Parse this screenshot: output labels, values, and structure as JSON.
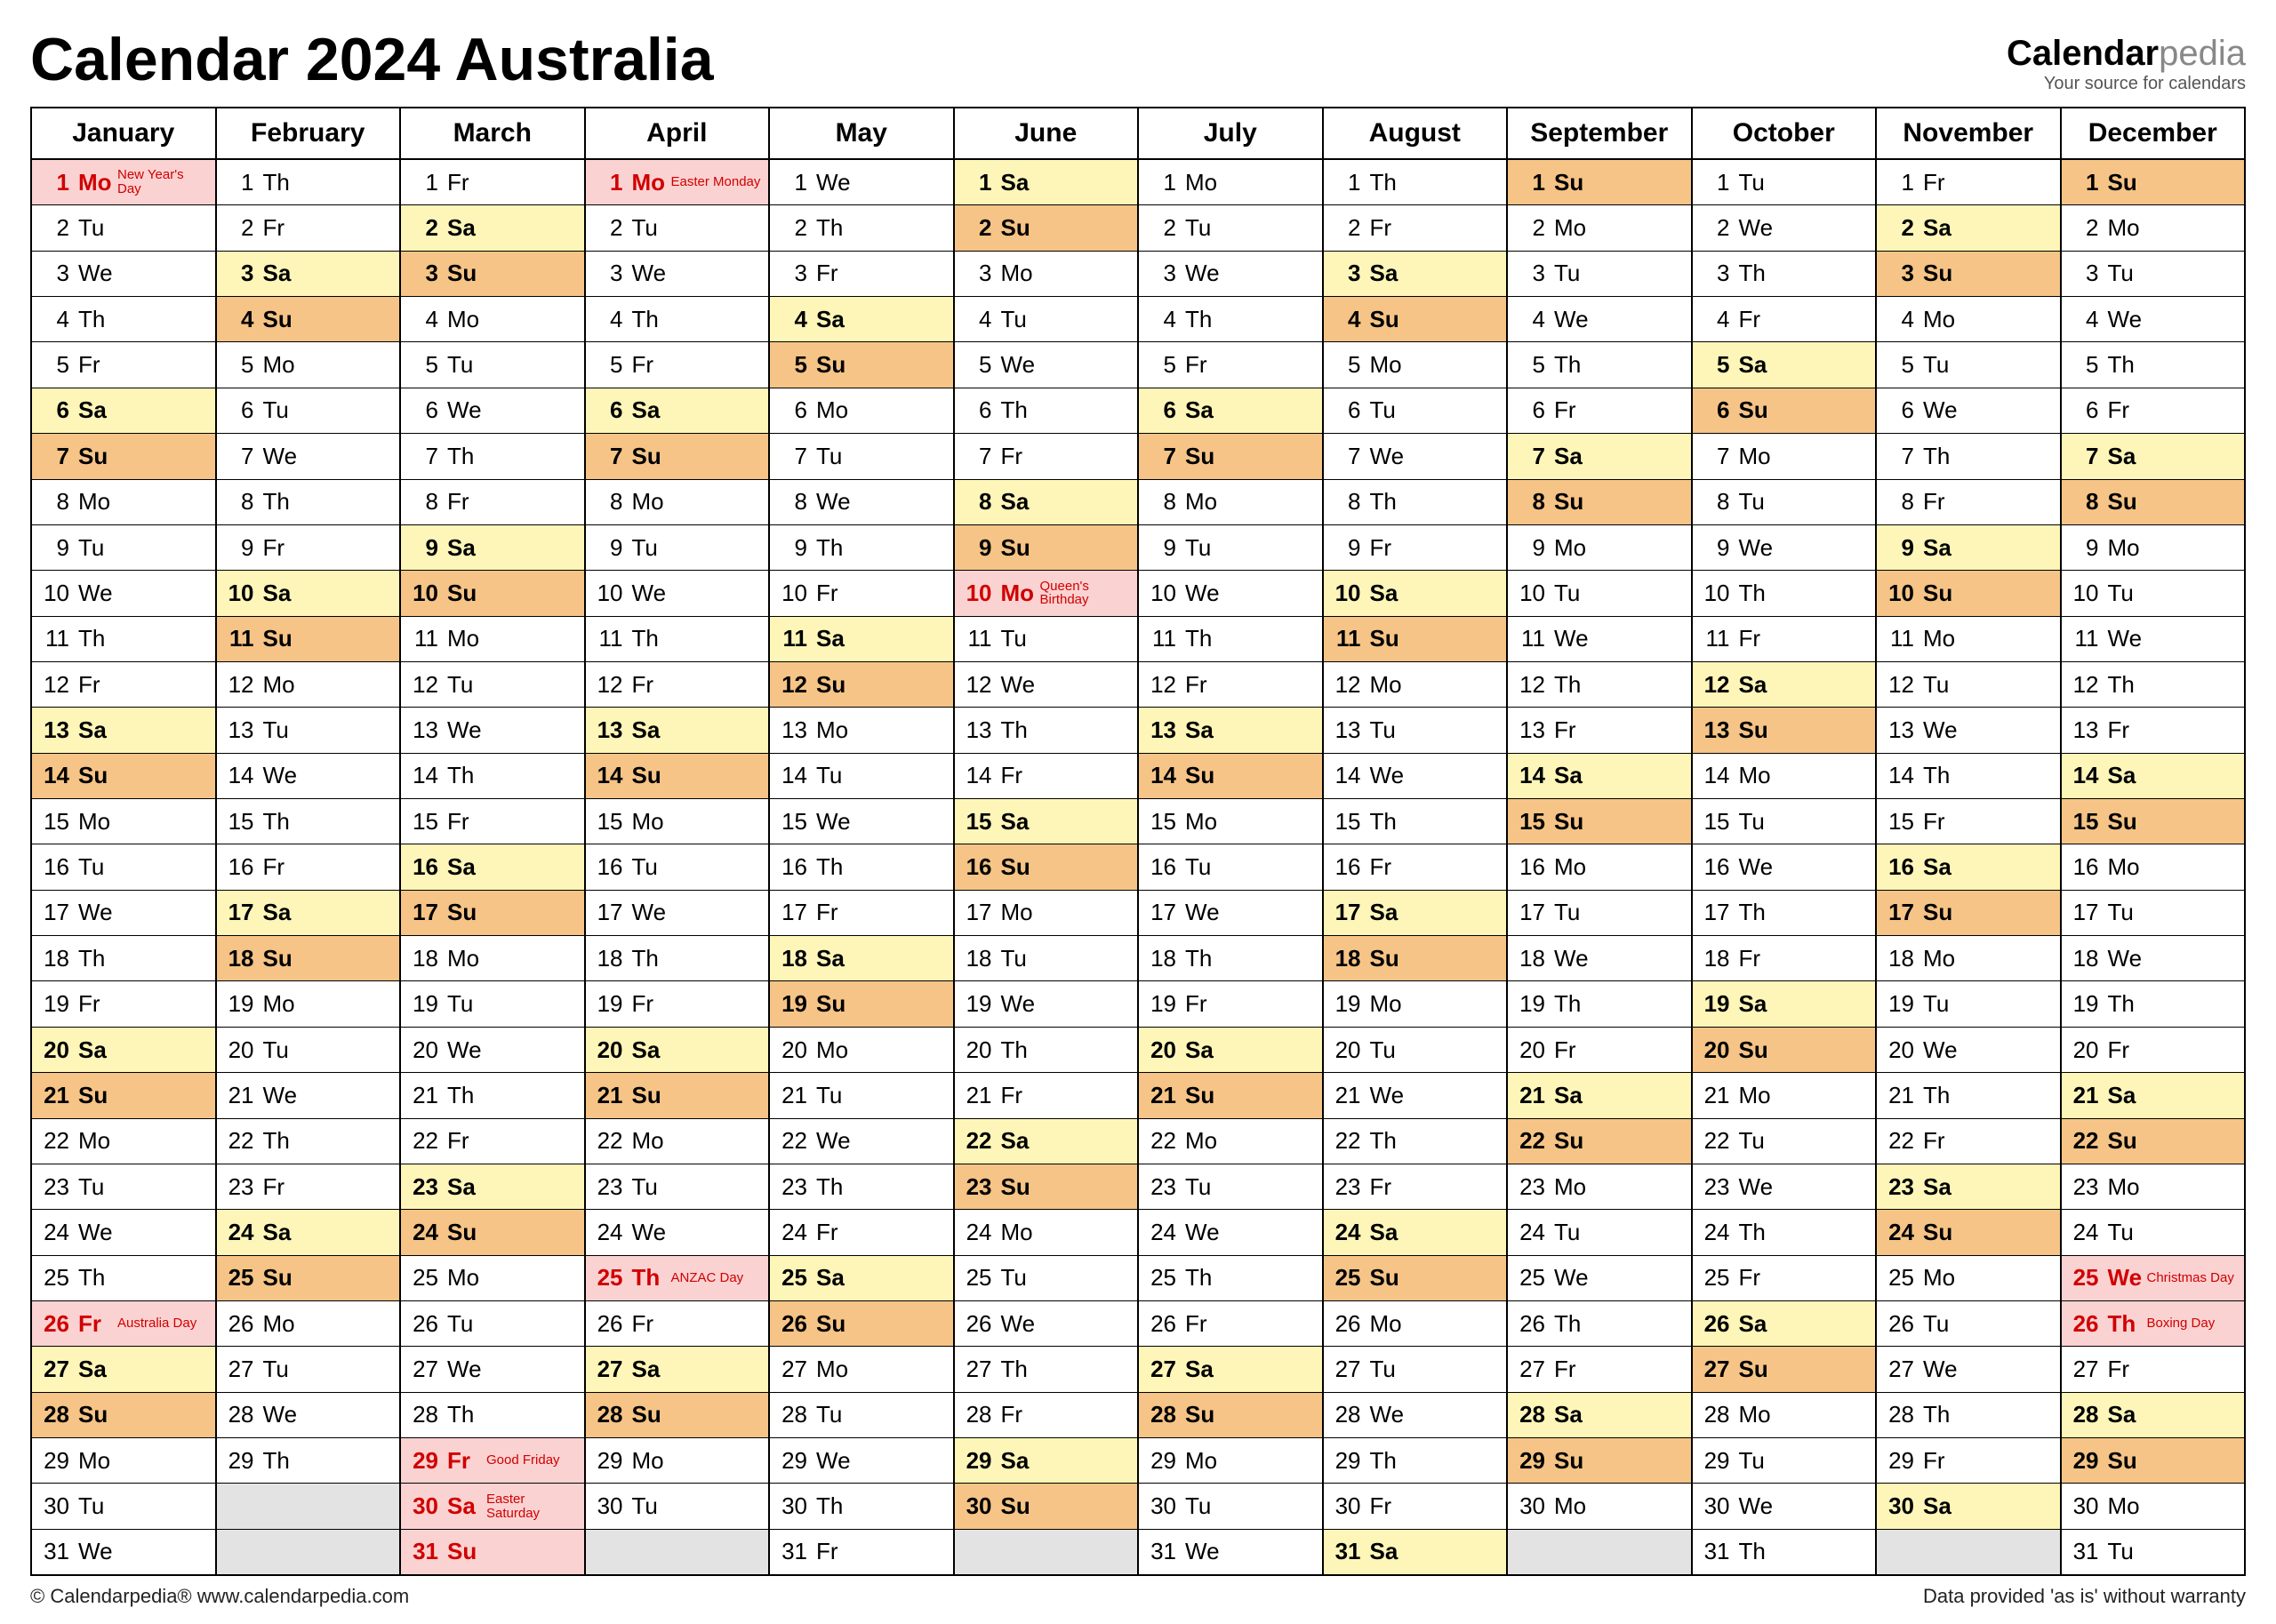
{
  "title": "Calendar 2024 Australia",
  "logo_brand": "Calendar",
  "logo_suffix": "pedia",
  "logo_tagline": "Your source for calendars",
  "footer_left": "© Calendarpedia®   www.calendarpedia.com",
  "footer_right": "Data provided 'as is' without warranty",
  "year": 2024,
  "first_weekday_of_month": [
    0,
    3,
    4,
    0,
    2,
    5,
    0,
    3,
    6,
    1,
    4,
    6
  ],
  "days_in_month": [
    31,
    29,
    31,
    30,
    31,
    30,
    31,
    31,
    30,
    31,
    30,
    31
  ],
  "weekday_abbr": [
    "Mo",
    "Tu",
    "We",
    "Th",
    "Fr",
    "Sa",
    "Su"
  ],
  "months": [
    "January",
    "February",
    "March",
    "April",
    "May",
    "June",
    "July",
    "August",
    "September",
    "October",
    "November",
    "December"
  ],
  "holidays": {
    "0": {
      "1": "New Year's Day",
      "26": "Australia Day"
    },
    "2": {
      "29": "Good Friday",
      "30": "Easter Saturday",
      "31": ""
    },
    "3": {
      "1": "Easter Monday",
      "25": "ANZAC Day"
    },
    "5": {
      "10": "Queen's Birthday"
    },
    "11": {
      "25": "Christmas Day",
      "26": "Boxing Day"
    }
  },
  "colors": {
    "sat_bg": "#fdf6b8",
    "sun_bg": "#f5c486",
    "hol_bg": "#fbd2d2",
    "empty_bg": "#e3e3e3",
    "hol_text": "#d00000",
    "border": "#000000"
  },
  "fonts": {
    "title_size": 68,
    "month_head_size": 30,
    "day_size": 26,
    "event_size": 15
  }
}
